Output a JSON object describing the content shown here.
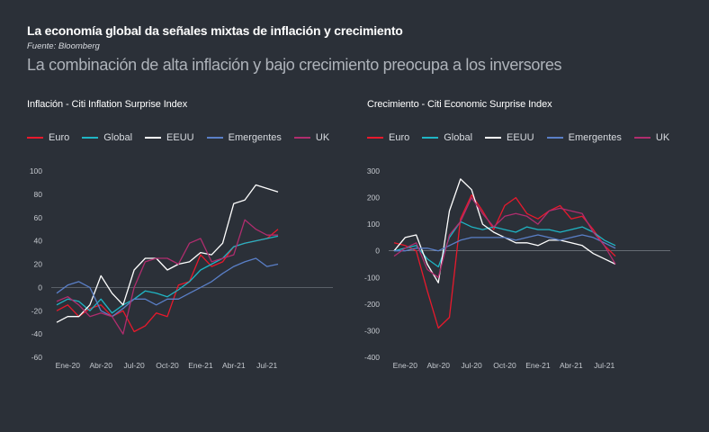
{
  "header": {
    "title": "La economía global da señales mixtas de inflación y crecimiento",
    "source": "Fuente: Bloomberg",
    "subtitle": "La combinación de alta inflación y bajo crecimiento preocupa a los inversores"
  },
  "colors": {
    "Euro": "#e8192c",
    "Global": "#1fb5c4",
    "EEUU": "#ffffff",
    "Emergentes": "#5a7fc7",
    "UK": "#b02d6e"
  },
  "chart_data": [
    {
      "type": "line",
      "title": "Inflación - Citi Inflation Surprise Index",
      "x_ticks": [
        "Ene-20",
        "Abr-20",
        "Jul-20",
        "Oct-20",
        "Ene-21",
        "Abr-21",
        "Jul-21"
      ],
      "x": [
        "2019-12",
        "2020-01",
        "2020-02",
        "2020-03",
        "2020-04",
        "2020-05",
        "2020-06",
        "2020-07",
        "2020-08",
        "2020-09",
        "2020-10",
        "2020-11",
        "2020-12",
        "2021-01",
        "2021-02",
        "2021-03",
        "2021-04",
        "2021-05",
        "2021-06",
        "2021-07",
        "2021-08"
      ],
      "yticks": [
        100,
        80,
        60,
        40,
        20,
        0,
        -20,
        -40,
        -60
      ],
      "ylim": [
        -60,
        100
      ],
      "series": [
        {
          "name": "Euro",
          "values": [
            -20,
            -15,
            -25,
            -18,
            -15,
            -25,
            -20,
            -38,
            -33,
            -22,
            -25,
            2,
            5,
            28,
            18,
            22,
            35,
            38,
            40,
            42,
            50
          ]
        },
        {
          "name": "Global",
          "values": [
            -15,
            -10,
            -12,
            -20,
            -10,
            -22,
            -15,
            -10,
            -3,
            -5,
            -8,
            -2,
            5,
            15,
            20,
            25,
            35,
            38,
            40,
            42,
            44
          ]
        },
        {
          "name": "EEUU",
          "values": [
            -30,
            -25,
            -25,
            -15,
            10,
            -5,
            -15,
            15,
            25,
            25,
            15,
            20,
            22,
            30,
            28,
            38,
            72,
            75,
            88,
            85,
            82
          ]
        },
        {
          "name": "Emergentes",
          "values": [
            -5,
            2,
            5,
            0,
            -20,
            -25,
            -18,
            -10,
            -10,
            -15,
            -10,
            -10,
            -5,
            0,
            5,
            12,
            18,
            22,
            25,
            18,
            20
          ]
        },
        {
          "name": "UK",
          "values": [
            -12,
            -8,
            -15,
            -25,
            -22,
            -25,
            -40,
            0,
            22,
            25,
            25,
            20,
            38,
            42,
            22,
            25,
            28,
            58,
            50,
            45,
            45
          ]
        }
      ]
    },
    {
      "type": "line",
      "title": "Crecimiento - Citi Economic Surprise Index",
      "x_ticks": [
        "Ene-20",
        "Abr-20",
        "Jul-20",
        "Oct-20",
        "Ene-21",
        "Abr-21",
        "Jul-21"
      ],
      "x": [
        "2019-12",
        "2020-01",
        "2020-02",
        "2020-03",
        "2020-04",
        "2020-05",
        "2020-06",
        "2020-07",
        "2020-08",
        "2020-09",
        "2020-10",
        "2020-11",
        "2020-12",
        "2021-01",
        "2021-02",
        "2021-03",
        "2021-04",
        "2021-05",
        "2021-06",
        "2021-07",
        "2021-08"
      ],
      "yticks": [
        300,
        200,
        100,
        0,
        -100,
        -200,
        -300,
        -400
      ],
      "ylim": [
        -400,
        300
      ],
      "series": [
        {
          "name": "Euro",
          "values": [
            30,
            20,
            0,
            -150,
            -290,
            -250,
            120,
            210,
            150,
            80,
            170,
            200,
            140,
            120,
            150,
            170,
            120,
            130,
            80,
            20,
            -20
          ]
        },
        {
          "name": "Global",
          "values": [
            0,
            10,
            20,
            -30,
            -60,
            50,
            110,
            90,
            80,
            90,
            80,
            70,
            90,
            80,
            80,
            70,
            80,
            90,
            70,
            40,
            20
          ]
        },
        {
          "name": "EEUU",
          "values": [
            0,
            50,
            60,
            -50,
            -120,
            150,
            270,
            230,
            100,
            70,
            50,
            30,
            30,
            20,
            40,
            40,
            30,
            20,
            -10,
            -30,
            -50
          ]
        },
        {
          "name": "Emergentes",
          "values": [
            0,
            0,
            10,
            10,
            0,
            20,
            40,
            50,
            50,
            50,
            50,
            40,
            50,
            60,
            50,
            40,
            50,
            60,
            50,
            30,
            10
          ]
        },
        {
          "name": "UK",
          "values": [
            -20,
            10,
            30,
            -70,
            -100,
            60,
            110,
            200,
            140,
            90,
            130,
            140,
            130,
            100,
            150,
            160,
            150,
            140,
            70,
            20,
            -50
          ]
        }
      ]
    }
  ]
}
